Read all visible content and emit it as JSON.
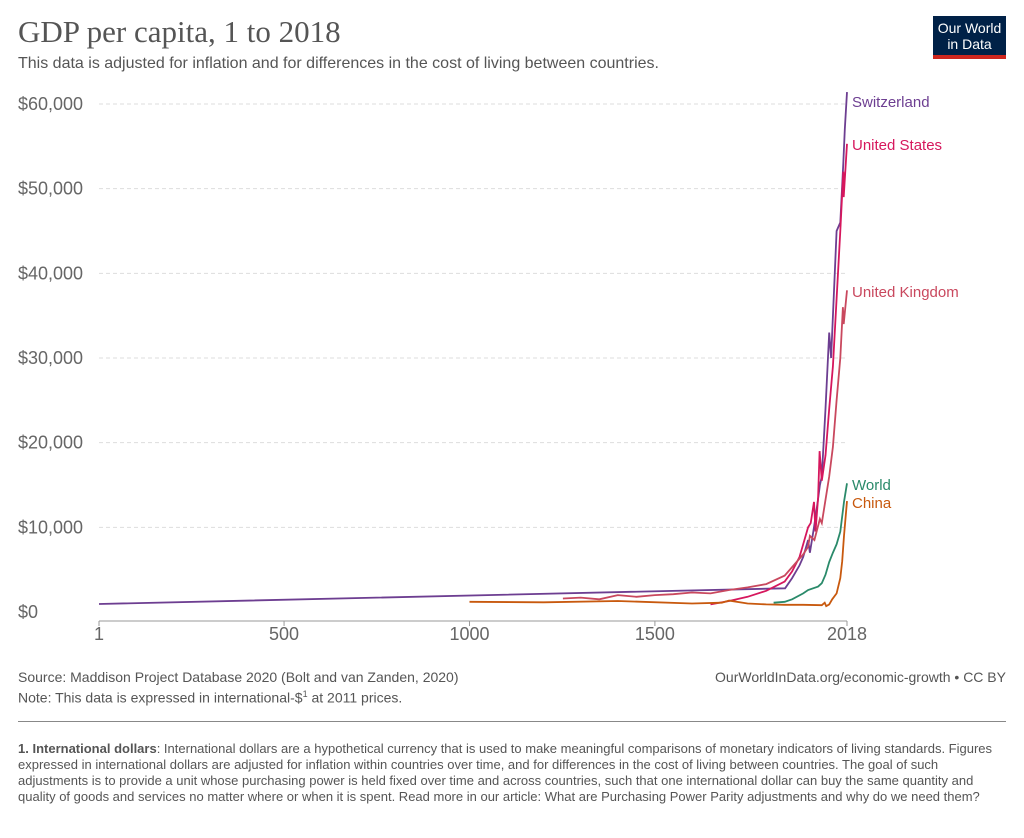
{
  "header": {
    "title": "GDP per capita, 1 to 2018",
    "subtitle": "This data is adjusted for inflation and for differences in the cost of living between countries.",
    "logo_line1": "Our World",
    "logo_line2": "in Data"
  },
  "chart_data": {
    "type": "line",
    "title": "GDP per capita, 1 to 2018",
    "xlim": [
      1,
      2018
    ],
    "ylim": [
      0,
      60000
    ],
    "x_ticks": [
      {
        "v": 1,
        "label": "1"
      },
      {
        "v": 500,
        "label": "500"
      },
      {
        "v": 1000,
        "label": "1000"
      },
      {
        "v": 1500,
        "label": "1500"
      },
      {
        "v": 2018,
        "label": "2018"
      }
    ],
    "y_ticks": [
      {
        "v": 0,
        "label": "$0"
      },
      {
        "v": 10000,
        "label": "$10,000"
      },
      {
        "v": 20000,
        "label": "$20,000"
      },
      {
        "v": 30000,
        "label": "$30,000"
      },
      {
        "v": 40000,
        "label": "$40,000"
      },
      {
        "v": 50000,
        "label": "$50,000"
      },
      {
        "v": 60000,
        "label": "$60,000"
      }
    ],
    "grid": "horizontal dashed",
    "legend": "inline-right",
    "series": [
      {
        "name": "Switzerland",
        "color": "#6d3e91",
        "points": [
          [
            1,
            950
          ],
          [
            1851,
            2800
          ],
          [
            1870,
            4000
          ],
          [
            1890,
            5500
          ],
          [
            1900,
            6500
          ],
          [
            1913,
            8500
          ],
          [
            1918,
            7000
          ],
          [
            1929,
            10000
          ],
          [
            1939,
            13000
          ],
          [
            1945,
            15000
          ],
          [
            1950,
            16000
          ],
          [
            1960,
            24000
          ],
          [
            1970,
            33000
          ],
          [
            1975,
            30000
          ],
          [
            1990,
            45000
          ],
          [
            2000,
            46000
          ],
          [
            2008,
            53000
          ],
          [
            2012,
            57000
          ],
          [
            2018,
            61400
          ]
        ]
      },
      {
        "name": "United States",
        "color": "#d6175d",
        "points": [
          [
            1650,
            900
          ],
          [
            1700,
            1300
          ],
          [
            1750,
            1800
          ],
          [
            1800,
            2500
          ],
          [
            1850,
            3600
          ],
          [
            1870,
            4800
          ],
          [
            1890,
            6500
          ],
          [
            1900,
            8000
          ],
          [
            1913,
            10000
          ],
          [
            1920,
            10500
          ],
          [
            1929,
            13000
          ],
          [
            1933,
            9500
          ],
          [
            1940,
            13500
          ],
          [
            1944,
            19000
          ],
          [
            1950,
            15500
          ],
          [
            1960,
            18500
          ],
          [
            1970,
            24000
          ],
          [
            1980,
            29000
          ],
          [
            1990,
            37000
          ],
          [
            2000,
            45000
          ],
          [
            2008,
            52000
          ],
          [
            2009,
            49000
          ],
          [
            2018,
            55300
          ]
        ]
      },
      {
        "name": "United Kingdom",
        "color": "#c9485e",
        "points": [
          [
            1252,
            1600
          ],
          [
            1300,
            1700
          ],
          [
            1350,
            1500
          ],
          [
            1400,
            2000
          ],
          [
            1450,
            1800
          ],
          [
            1500,
            2000
          ],
          [
            1550,
            2100
          ],
          [
            1600,
            2300
          ],
          [
            1650,
            2200
          ],
          [
            1700,
            2600
          ],
          [
            1750,
            2900
          ],
          [
            1800,
            3300
          ],
          [
            1850,
            4300
          ],
          [
            1870,
            5300
          ],
          [
            1900,
            6800
          ],
          [
            1913,
            7700
          ],
          [
            1918,
            9000
          ],
          [
            1930,
            8500
          ],
          [
            1945,
            11000
          ],
          [
            1950,
            10500
          ],
          [
            1970,
            16000
          ],
          [
            1980,
            19500
          ],
          [
            1990,
            25000
          ],
          [
            2000,
            30000
          ],
          [
            2007,
            36000
          ],
          [
            2009,
            34000
          ],
          [
            2018,
            38000
          ]
        ]
      },
      {
        "name": "World",
        "color": "#2a8a6a",
        "points": [
          [
            1820,
            1100
          ],
          [
            1850,
            1200
          ],
          [
            1870,
            1500
          ],
          [
            1900,
            2200
          ],
          [
            1913,
            2600
          ],
          [
            1940,
            3000
          ],
          [
            1950,
            3400
          ],
          [
            1960,
            4400
          ],
          [
            1970,
            5900
          ],
          [
            1980,
            7000
          ],
          [
            1990,
            8000
          ],
          [
            2000,
            9500
          ],
          [
            2010,
            13000
          ],
          [
            2018,
            15200
          ]
        ]
      },
      {
        "name": "China",
        "color": "#c8590e",
        "points": [
          [
            1000,
            1200
          ],
          [
            1200,
            1150
          ],
          [
            1400,
            1300
          ],
          [
            1600,
            1000
          ],
          [
            1680,
            1100
          ],
          [
            1700,
            1350
          ],
          [
            1750,
            1000
          ],
          [
            1800,
            900
          ],
          [
            1850,
            850
          ],
          [
            1900,
            850
          ],
          [
            1950,
            800
          ],
          [
            1958,
            1100
          ],
          [
            1962,
            700
          ],
          [
            1970,
            900
          ],
          [
            1978,
            1500
          ],
          [
            1990,
            2200
          ],
          [
            2000,
            4000
          ],
          [
            2005,
            6000
          ],
          [
            2010,
            9000
          ],
          [
            2018,
            13100
          ]
        ]
      }
    ]
  },
  "footer": {
    "source": "Source: Maddison Project Database 2020 (Bolt and van Zanden, 2020)",
    "note_pre": "Note: This data is expressed in international-$",
    "note_sup": "1",
    "note_post": " at 2011 prices.",
    "url": "OurWorldInData.org/economic-growth • CC BY",
    "footnote_title": "1. International dollars",
    "footnote_text": ": International dollars are a hypothetical currency that is used to make meaningful comparisons of monetary indicators of living standards. Figures expressed in international dollars are adjusted for inflation within countries over time, and for differences in the cost of living between countries. The goal of such adjustments is to provide a unit whose purchasing power is held fixed over time and across countries, such that one international dollar can buy the same quantity and quality of goods and services no matter where or when it is spent. Read more in our article: What are Purchasing Power Parity adjustments and why do we need them?"
  }
}
